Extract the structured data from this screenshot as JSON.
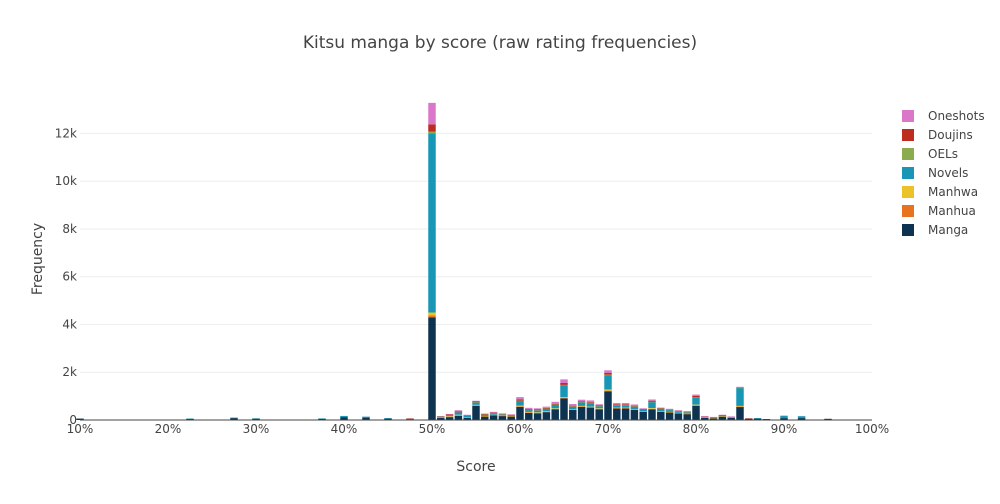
{
  "chart_data": {
    "type": "bar",
    "barmode": "stack",
    "title": "Kitsu manga by score (raw rating frequencies)",
    "xlabel": "Score",
    "ylabel": "Frequency",
    "xlim": [
      10,
      100
    ],
    "ylim": [
      0,
      13400
    ],
    "x_tick_labels": [
      "10%",
      "20%",
      "30%",
      "40%",
      "50%",
      "60%",
      "70%",
      "80%",
      "90%",
      "100%"
    ],
    "y_tick_labels": [
      "0",
      "2k",
      "4k",
      "6k",
      "8k",
      "10k",
      "12k"
    ],
    "grid": true,
    "legend_position": "right",
    "x": [
      10,
      20,
      22.5,
      27.5,
      30,
      35,
      37.5,
      40,
      42.5,
      45,
      47.5,
      50,
      51,
      52,
      53,
      54,
      55,
      56,
      57,
      58,
      59,
      60,
      61,
      62,
      63,
      64,
      65,
      66,
      67,
      68,
      69,
      70,
      71,
      72,
      73,
      74,
      75,
      76,
      77,
      78,
      79,
      80,
      81,
      82,
      83,
      84,
      85,
      86,
      87,
      88,
      90,
      92,
      95,
      97.5
    ],
    "series": [
      {
        "name": "Manga",
        "color": "#0d3351",
        "values": [
          60,
          20,
          50,
          80,
          60,
          20,
          50,
          120,
          100,
          60,
          40,
          4300,
          100,
          120,
          180,
          100,
          600,
          150,
          200,
          170,
          150,
          550,
          300,
          280,
          330,
          450,
          900,
          420,
          550,
          520,
          450,
          1200,
          480,
          480,
          420,
          350,
          450,
          350,
          320,
          280,
          250,
          600,
          100,
          80,
          150,
          100,
          550,
          60,
          60,
          40,
          80,
          80,
          50,
          20
        ]
      },
      {
        "name": "Manhua",
        "color": "#e8731f",
        "values": [
          0,
          0,
          0,
          0,
          0,
          0,
          0,
          0,
          0,
          0,
          0,
          80,
          10,
          20,
          20,
          10,
          15,
          10,
          10,
          10,
          10,
          20,
          20,
          20,
          20,
          20,
          20,
          20,
          20,
          20,
          20,
          30,
          20,
          20,
          20,
          10,
          20,
          10,
          10,
          10,
          10,
          15,
          5,
          5,
          5,
          5,
          10,
          0,
          0,
          0,
          0,
          0,
          0,
          0
        ]
      },
      {
        "name": "Manhwa",
        "color": "#ecc229",
        "values": [
          0,
          0,
          0,
          0,
          0,
          0,
          0,
          0,
          0,
          0,
          0,
          120,
          10,
          20,
          20,
          10,
          20,
          10,
          10,
          10,
          10,
          30,
          20,
          20,
          20,
          20,
          40,
          20,
          20,
          20,
          20,
          50,
          20,
          20,
          20,
          10,
          30,
          10,
          10,
          10,
          10,
          30,
          5,
          5,
          5,
          5,
          30,
          0,
          0,
          0,
          0,
          0,
          0,
          0
        ]
      },
      {
        "name": "Novels",
        "color": "#1796b5",
        "values": [
          0,
          0,
          10,
          20,
          10,
          0,
          20,
          50,
          40,
          20,
          10,
          7500,
          20,
          40,
          100,
          50,
          100,
          50,
          60,
          40,
          30,
          200,
          80,
          80,
          100,
          150,
          500,
          100,
          150,
          150,
          80,
          600,
          100,
          100,
          100,
          60,
          250,
          100,
          80,
          60,
          50,
          300,
          30,
          20,
          40,
          20,
          750,
          0,
          20,
          0,
          100,
          80,
          0,
          0
        ]
      },
      {
        "name": "OELs",
        "color": "#8aac4e",
        "values": [
          0,
          0,
          0,
          0,
          0,
          0,
          0,
          0,
          0,
          0,
          0,
          80,
          0,
          0,
          0,
          0,
          10,
          10,
          10,
          10,
          0,
          10,
          10,
          10,
          10,
          10,
          10,
          10,
          10,
          10,
          10,
          20,
          10,
          10,
          10,
          10,
          10,
          10,
          10,
          10,
          10,
          10,
          0,
          0,
          0,
          0,
          10,
          0,
          0,
          0,
          0,
          0,
          0,
          0
        ]
      },
      {
        "name": "Doujins",
        "color": "#bd2c1f",
        "values": [
          0,
          0,
          0,
          0,
          0,
          0,
          0,
          0,
          0,
          0,
          20,
          300,
          20,
          30,
          40,
          30,
          30,
          20,
          20,
          20,
          20,
          50,
          30,
          30,
          30,
          30,
          80,
          30,
          30,
          30,
          30,
          80,
          30,
          30,
          30,
          20,
          50,
          20,
          20,
          20,
          20,
          50,
          10,
          10,
          10,
          10,
          20,
          10,
          0,
          0,
          0,
          0,
          0,
          0
        ]
      },
      {
        "name": "Oneshots",
        "color": "#d977c8",
        "values": [
          0,
          0,
          0,
          0,
          0,
          0,
          0,
          0,
          0,
          0,
          0,
          900,
          0,
          20,
          50,
          20,
          30,
          20,
          30,
          20,
          20,
          100,
          50,
          50,
          50,
          80,
          150,
          70,
          70,
          70,
          50,
          100,
          50,
          50,
          50,
          30,
          50,
          20,
          20,
          20,
          20,
          60,
          10,
          10,
          10,
          10,
          20,
          0,
          0,
          0,
          0,
          0,
          0,
          0
        ]
      }
    ],
    "legend_order": [
      "Oneshots",
      "Doujins",
      "OELs",
      "Novels",
      "Manhwa",
      "Manhua",
      "Manga"
    ]
  }
}
